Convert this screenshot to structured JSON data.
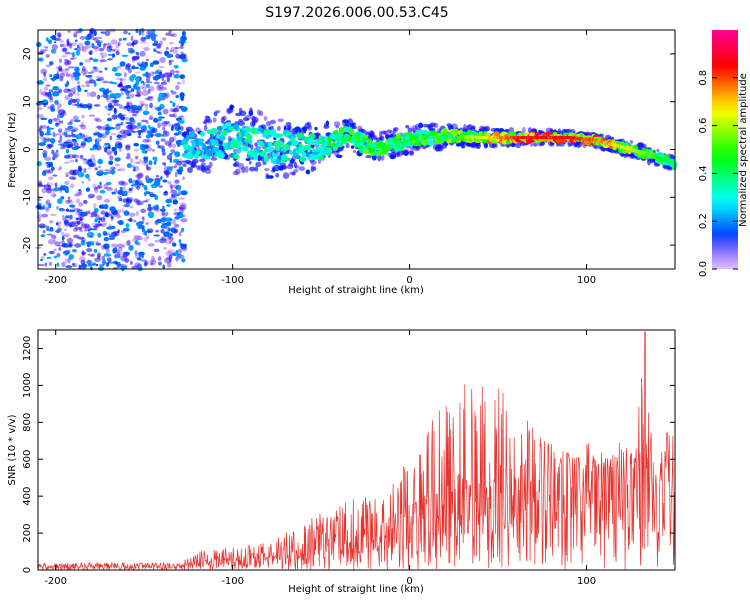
{
  "figure_title": "S197.2026.006.00.53.C45",
  "chart_data": [
    {
      "type": "heatmap",
      "xlabel": "Height of straight line (km)",
      "ylabel": "Frequency (Hz)",
      "xlim": [
        -210,
        150
      ],
      "ylim": [
        -25,
        25
      ],
      "xticks": [
        -200,
        -100,
        0,
        100
      ],
      "yticks": [
        -20,
        -10,
        0,
        10,
        20
      ],
      "colorbar": {
        "label": "Normalized spectral amplitude",
        "range": [
          0,
          1
        ],
        "ticks": [
          "0.0",
          "0.2",
          "0.4",
          "0.6",
          "0.8"
        ],
        "tick_values": [
          0,
          0.2,
          0.4,
          0.6,
          0.8
        ]
      },
      "noise_region": {
        "x_range": [
          -210,
          -127
        ],
        "freq_range": [
          -25,
          25
        ],
        "level": 0.15
      },
      "signal_ridge": [
        {
          "x": -125,
          "freq": 0.5,
          "spread": 3.0,
          "level": 0.3
        },
        {
          "x": -100,
          "freq": 2.0,
          "spread": 4.5,
          "level": 0.35
        },
        {
          "x": -75,
          "freq": 0.5,
          "spread": 4.0,
          "level": 0.35
        },
        {
          "x": -50,
          "freq": 0.5,
          "spread": 3.0,
          "level": 0.38
        },
        {
          "x": -35,
          "freq": 3.0,
          "spread": 2.0,
          "level": 0.5
        },
        {
          "x": -20,
          "freq": 0.0,
          "spread": 2.0,
          "level": 0.5
        },
        {
          "x": 0,
          "freq": 2.0,
          "spread": 1.8,
          "level": 0.5
        },
        {
          "x": 20,
          "freq": 3.0,
          "spread": 1.6,
          "level": 0.55
        },
        {
          "x": 40,
          "freq": 2.5,
          "spread": 1.2,
          "level": 0.65
        },
        {
          "x": 60,
          "freq": 2.5,
          "spread": 1.0,
          "level": 0.85
        },
        {
          "x": 90,
          "freq": 2.5,
          "spread": 0.9,
          "level": 0.9
        },
        {
          "x": 105,
          "freq": 2.0,
          "spread": 0.9,
          "level": 0.8
        },
        {
          "x": 120,
          "freq": 0.5,
          "spread": 1.0,
          "level": 0.7
        },
        {
          "x": 135,
          "freq": -1.0,
          "spread": 1.0,
          "level": 0.55
        },
        {
          "x": 150,
          "freq": -3.0,
          "spread": 1.0,
          "level": 0.4
        }
      ]
    },
    {
      "type": "line",
      "xlabel": "Height of straight line (km)",
      "ylabel": "SNR (10 * v/v)",
      "xlim": [
        -210,
        150
      ],
      "ylim": [
        0,
        1300
      ],
      "xticks": [
        -200,
        -100,
        0,
        100
      ],
      "yticks": [
        0,
        200,
        400,
        600,
        800,
        1000,
        1200
      ],
      "color": "#e8322e",
      "envelope": [
        {
          "x": -210,
          "mean": 20,
          "max": 40
        },
        {
          "x": -130,
          "mean": 20,
          "max": 40
        },
        {
          "x": -120,
          "mean": 40,
          "max": 100
        },
        {
          "x": -100,
          "mean": 60,
          "max": 130
        },
        {
          "x": -80,
          "mean": 70,
          "max": 160
        },
        {
          "x": -60,
          "mean": 120,
          "max": 260
        },
        {
          "x": -40,
          "mean": 160,
          "max": 360
        },
        {
          "x": -20,
          "mean": 180,
          "max": 420
        },
        {
          "x": 0,
          "mean": 260,
          "max": 600
        },
        {
          "x": 15,
          "mean": 330,
          "max": 850
        },
        {
          "x": 30,
          "mean": 380,
          "max": 1000
        },
        {
          "x": 42,
          "mean": 420,
          "max": 1060
        },
        {
          "x": 60,
          "mean": 430,
          "max": 900
        },
        {
          "x": 80,
          "mean": 460,
          "max": 700
        },
        {
          "x": 100,
          "mean": 490,
          "max": 600
        },
        {
          "x": 120,
          "mean": 500,
          "max": 620
        },
        {
          "x": 128,
          "mean": 450,
          "max": 700
        },
        {
          "x": 133,
          "mean": 900,
          "max": 1290
        },
        {
          "x": 137,
          "mean": 400,
          "max": 700
        },
        {
          "x": 145,
          "mean": 350,
          "max": 750
        },
        {
          "x": 150,
          "mean": 400,
          "max": 760
        }
      ],
      "peak": {
        "x": 133,
        "value": 1290
      }
    }
  ]
}
